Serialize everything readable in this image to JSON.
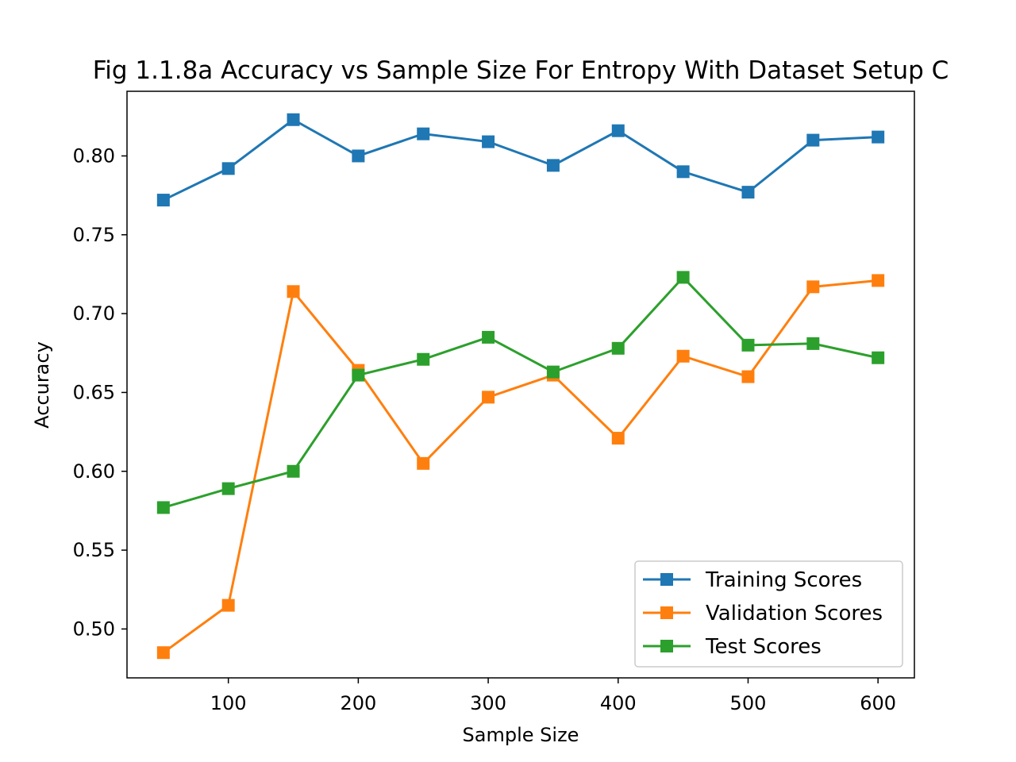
{
  "chart_data": {
    "type": "line",
    "title": "Fig 1.1.8a Accuracy vs Sample Size For Entropy With Dataset Setup C",
    "xlabel": "Sample Size",
    "ylabel": "Accuracy",
    "x": [
      50,
      100,
      150,
      200,
      250,
      300,
      350,
      400,
      450,
      500,
      550,
      600
    ],
    "xlim": [
      22,
      628
    ],
    "ylim": [
      0.469,
      0.841
    ],
    "xticks": [
      100,
      200,
      300,
      400,
      500,
      600
    ],
    "xtick_labels": [
      "100",
      "200",
      "300",
      "400",
      "500",
      "600"
    ],
    "yticks": [
      0.5,
      0.55,
      0.6,
      0.65,
      0.7,
      0.75,
      0.8
    ],
    "ytick_labels": [
      "0.50",
      "0.55",
      "0.60",
      "0.65",
      "0.70",
      "0.75",
      "0.80"
    ],
    "grid": false,
    "legend_position": "lower-right",
    "marker": "square",
    "series": [
      {
        "name": "Training Scores",
        "color": "#1f77b4",
        "values": [
          0.772,
          0.792,
          0.823,
          0.8,
          0.814,
          0.809,
          0.794,
          0.816,
          0.79,
          0.777,
          0.81,
          0.812
        ]
      },
      {
        "name": "Validation Scores",
        "color": "#ff7f0e",
        "values": [
          0.485,
          0.515,
          0.714,
          0.664,
          0.605,
          0.647,
          0.661,
          0.621,
          0.673,
          0.66,
          0.717,
          0.721
        ]
      },
      {
        "name": "Test Scores",
        "color": "#2ca02c",
        "values": [
          0.577,
          0.589,
          0.6,
          0.661,
          0.671,
          0.685,
          0.663,
          0.678,
          0.723,
          0.68,
          0.681,
          0.672
        ]
      }
    ]
  }
}
